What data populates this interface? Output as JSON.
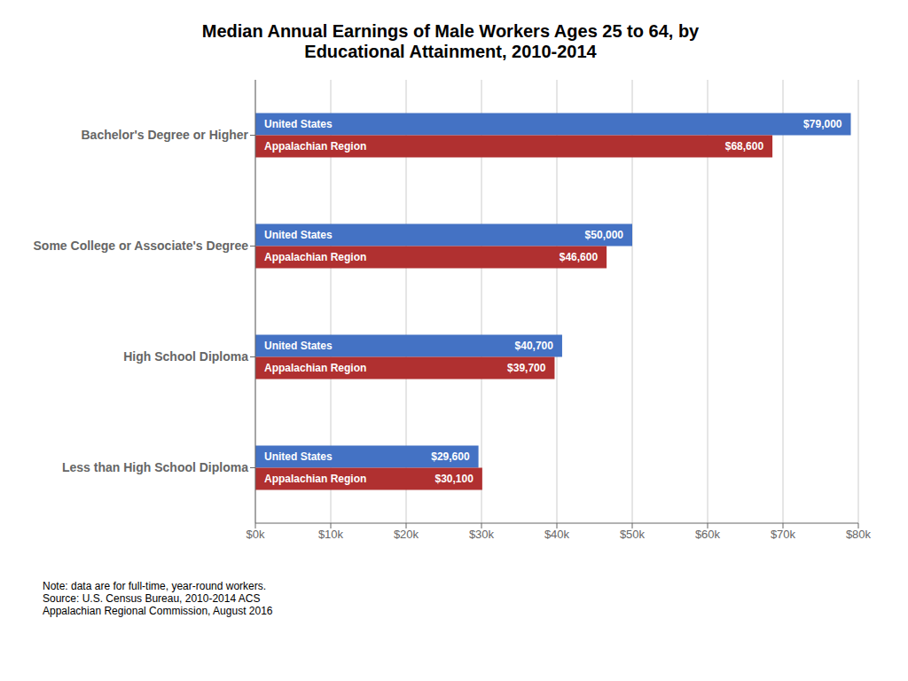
{
  "chart_data": {
    "type": "bar",
    "orientation": "horizontal",
    "title": "Median Annual Earnings of Male Workers Ages 25 to 64, by\nEducational Attainment, 2010-2014",
    "categories": [
      "Less than High School Diploma",
      "High School Diploma",
      "Some College or Associate's Degree",
      "Bachelor's Degree or Higher"
    ],
    "series": [
      {
        "name": "United States",
        "color": "#4472C4",
        "values": [
          29600,
          40700,
          50000,
          79000
        ],
        "value_labels": [
          "$29,600",
          "$40,700",
          "$50,000",
          "$79,000"
        ]
      },
      {
        "name": "Appalachian Region",
        "color": "#B03030",
        "values": [
          30100,
          39700,
          46600,
          68600
        ],
        "value_labels": [
          "$30,100",
          "$39,700",
          "$46,600",
          "$68,600"
        ]
      }
    ],
    "xlim": [
      0,
      80000
    ],
    "xticks": [
      {
        "value": 0,
        "label": "$0k"
      },
      {
        "value": 10000,
        "label": "$10k"
      },
      {
        "value": 20000,
        "label": "$20k"
      },
      {
        "value": 30000,
        "label": "$30k"
      },
      {
        "value": 40000,
        "label": "$40k"
      },
      {
        "value": 50000,
        "label": "$50k"
      },
      {
        "value": 60000,
        "label": "$60k"
      },
      {
        "value": 70000,
        "label": "$70k"
      },
      {
        "value": 80000,
        "label": "$80k"
      }
    ],
    "grid": true,
    "data_labels": true,
    "annotations": [
      "Note: data are for full-time, year-round workers.\nSource: U.S. Census Bureau, 2010-2014 ACS\nAppalachian Regional Commission, August 2016"
    ]
  }
}
